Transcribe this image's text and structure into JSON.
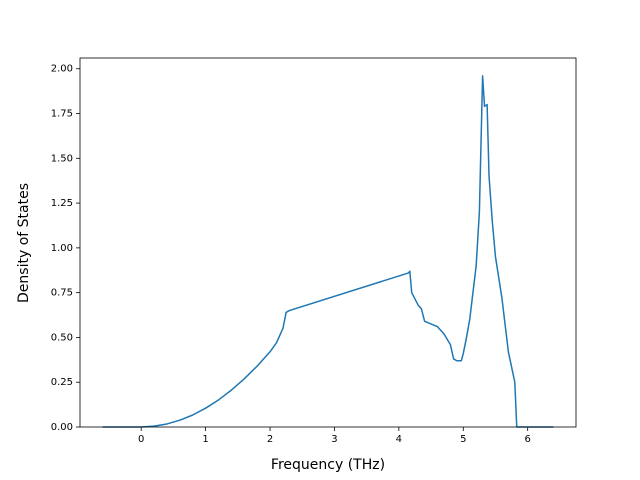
{
  "chart_data": {
    "type": "line",
    "x_label": "Frequency (THz)",
    "y_label": "Density of States",
    "x": [
      -0.6,
      -0.3,
      0,
      0.2,
      0.4,
      0.6,
      0.8,
      1.0,
      1.2,
      1.4,
      1.6,
      1.8,
      2.0,
      2.1,
      2.2,
      2.25,
      2.3,
      4.15,
      4.17,
      4.2,
      4.3,
      4.35,
      4.4,
      4.6,
      4.7,
      4.8,
      4.85,
      4.9,
      4.97,
      5.0,
      5.05,
      5.1,
      5.2,
      5.25,
      5.3,
      5.33,
      5.37,
      5.4,
      5.45,
      5.5,
      5.6,
      5.7,
      5.8,
      5.83,
      6.1,
      6.4
    ],
    "values": [
      0,
      0,
      0,
      0.005,
      0.017,
      0.038,
      0.067,
      0.105,
      0.151,
      0.206,
      0.269,
      0.34,
      0.42,
      0.47,
      0.55,
      0.64,
      0.65,
      0.86,
      0.87,
      0.75,
      0.68,
      0.66,
      0.59,
      0.56,
      0.52,
      0.46,
      0.38,
      0.37,
      0.37,
      0.41,
      0.5,
      0.6,
      0.9,
      1.2,
      1.96,
      1.79,
      1.8,
      1.4,
      1.15,
      0.95,
      0.72,
      0.42,
      0.25,
      0,
      0,
      0
    ],
    "color": "#1f77b4",
    "xlim": [
      -0.95,
      6.75
    ],
    "xticks": [
      0,
      1,
      2,
      3,
      4,
      5,
      6
    ],
    "ylim": [
      0,
      2.06
    ],
    "yticks": [
      {
        "value": 0,
        "label": "0.00"
      },
      {
        "value": 0.25,
        "label": "0.25"
      },
      {
        "value": 0.5,
        "label": "0.50"
      },
      {
        "value": 0.75,
        "label": "0.75"
      },
      {
        "value": 1,
        "label": "1.00"
      },
      {
        "value": 1.25,
        "label": "1.25"
      },
      {
        "value": 1.5,
        "label": "1.50"
      },
      {
        "value": 1.75,
        "label": "1.75"
      },
      {
        "value": 2,
        "label": "2.00"
      }
    ],
    "grid": false
  }
}
